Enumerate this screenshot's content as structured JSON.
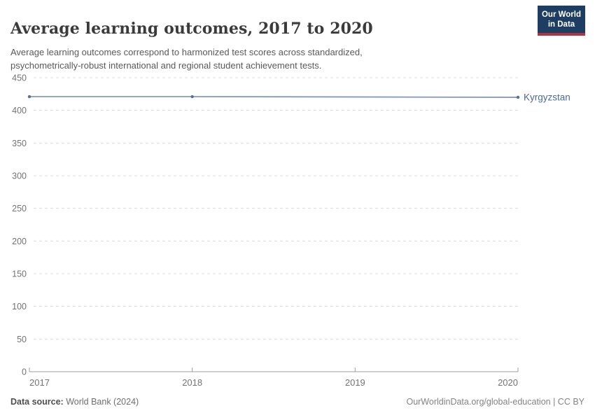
{
  "header": {
    "title": "Average learning outcomes, 2017 to 2020",
    "subtitle": "Average learning outcomes correspond to harmonized test scores across standardized, psychometrically-robust international and regional student achievement tests.",
    "logo_line1": "Our World",
    "logo_line2": "in Data",
    "logo_bg_color": "#1d3d63",
    "logo_stripe_color": "#b0343f"
  },
  "chart_data": {
    "type": "line",
    "title": "Average learning outcomes, 2017 to 2020",
    "xlabel": "",
    "ylabel": "",
    "xlim": [
      2017,
      2020
    ],
    "ylim": [
      0,
      450
    ],
    "x_ticks": [
      2017,
      2018,
      2019,
      2020
    ],
    "y_ticks": [
      0,
      50,
      100,
      150,
      200,
      250,
      300,
      350,
      400,
      450
    ],
    "grid": "horizontal-dashed",
    "legend_position": "end-of-line-label",
    "series": [
      {
        "name": "Kyrgyzstan",
        "x": [
          2017,
          2018,
          2020
        ],
        "values": [
          421,
          421,
          420
        ],
        "line_color": "#7b93b8",
        "marker_color": "#587398",
        "label_color": "#4c6a9c"
      }
    ],
    "axis_color": "#9e9e9e",
    "gridline_color": "#dcdcdc",
    "tick_label_color": "#737373"
  },
  "footer": {
    "source_label": "Data source:",
    "source_value": " World Bank (2024)",
    "attribution": "OurWorldinData.org/global-education | CC BY"
  }
}
